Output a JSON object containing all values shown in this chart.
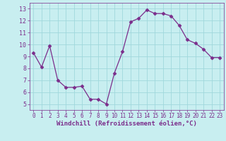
{
  "x": [
    0,
    1,
    2,
    3,
    4,
    5,
    6,
    7,
    8,
    9,
    10,
    11,
    12,
    13,
    14,
    15,
    16,
    17,
    18,
    19,
    20,
    21,
    22,
    23
  ],
  "y": [
    9.3,
    8.1,
    9.9,
    7.0,
    6.4,
    6.4,
    6.5,
    5.4,
    5.4,
    5.0,
    7.6,
    9.4,
    11.9,
    12.2,
    12.9,
    12.6,
    12.6,
    12.4,
    11.6,
    10.4,
    10.1,
    9.6,
    8.9,
    8.9
  ],
  "line_color": "#7b2d8b",
  "marker": "D",
  "marker_size": 2.5,
  "bg_color": "#c8eef0",
  "grid_color": "#a0d8dc",
  "xlabel": "Windchill (Refroidissement éolien,°C)",
  "xlabel_color": "#7b2d8b",
  "tick_color": "#7b2d8b",
  "ylim": [
    4.5,
    13.5
  ],
  "xlim": [
    -0.5,
    23.5
  ],
  "yticks": [
    5,
    6,
    7,
    8,
    9,
    10,
    11,
    12,
    13
  ],
  "xticks": [
    0,
    1,
    2,
    3,
    4,
    5,
    6,
    7,
    8,
    9,
    10,
    11,
    12,
    13,
    14,
    15,
    16,
    17,
    18,
    19,
    20,
    21,
    22,
    23
  ]
}
